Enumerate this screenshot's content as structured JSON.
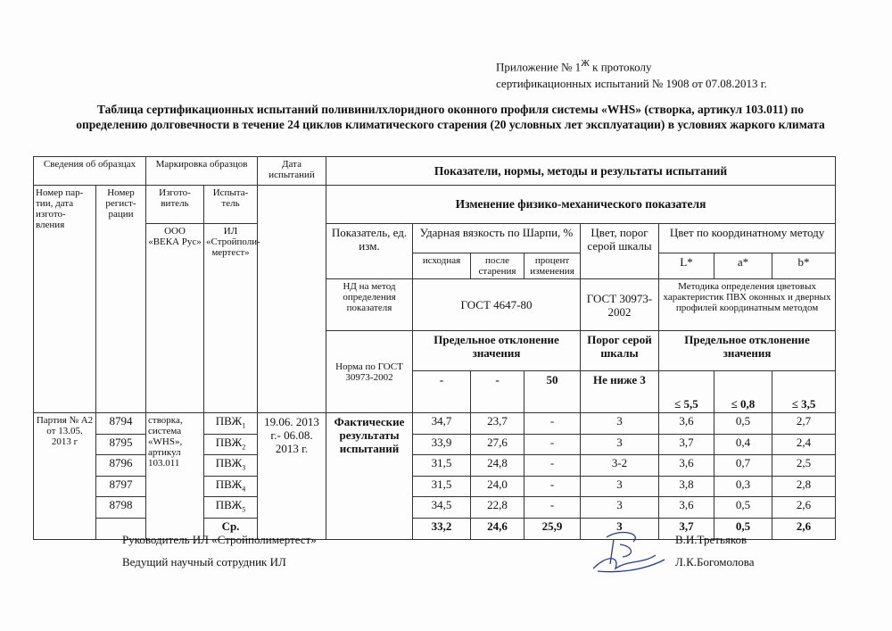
{
  "appendix": {
    "line1": "Приложение № 1",
    "sup": "Ж",
    "line1b": " к протоколу",
    "line2": "сертификационных испытаний № 1908 от 07.08.2013 г."
  },
  "title": "Таблица сертификационных испытаний поливинилхлоридного оконного профиля системы «WHS» (створка, артикул 103.011) по определению долговечности в течение 24 циклов климатического старения (20 условных лет эксплуатации) в условиях жаркого климата",
  "table": {
    "h_samples": "Сведения об образцах",
    "h_marking": "Маркировка образцов",
    "h_date": "Дата испытаний",
    "h_indicators": "Показатели, нормы, методы и результаты испытаний",
    "h_batch": "Номер пар-тии, дата изгото-вления",
    "h_reg": "Номер регист-рации",
    "h_maker": "Изгото-витель",
    "h_tester": "Испыта-тель",
    "h_change": "Изменение физико-механического показателя",
    "maker": "ООО «ВЕКА Рус»",
    "tester": "ИЛ «Стройполи-мертест»",
    "h_param": "Показатель, ед. изм.",
    "h_charpy": "Ударная вязкость по Шарпи, %",
    "h_grey": "Цвет, порог серой шкалы",
    "h_coord": "Цвет по координатному методу",
    "h_initial": "исходная",
    "h_after": "после старения",
    "h_percent": "процент изменения",
    "h_L": "L*",
    "h_a": "a*",
    "h_b": "b*",
    "h_nd": "НД на метод определения показателя",
    "nd_charpy": "ГОСТ 4647-80",
    "nd_grey": "ГОСТ 30973-2002",
    "nd_coord": "Методика определения цветовых характеристик ПВХ оконных и дверных профилей координатным методом",
    "h_norm": "Норма по ГОСТ 30973-2002",
    "norm_dev1": "Предельное отклонение значения",
    "norm_grey": "Порог серой шкалы",
    "norm_dev2": "Предельное отклонение значения",
    "norms": [
      "-",
      "-",
      "50",
      "Не ниже 3",
      "≤ 5,5",
      "≤ 0,8",
      "≤ 3,5"
    ],
    "batch": "Партия № А2 от 13.05. 2013 г",
    "sample_desc": "створка, система «WHS», артикул 103.011",
    "test_dates": "19.06. 2013 г.- 06.08. 2013 г.",
    "actual": "Фактические результаты испытаний",
    "rows": [
      {
        "reg": "8794",
        "code": "ПВЖ",
        "sub": "1",
        "v": [
          "34,7",
          "23,7",
          "-",
          "3",
          "3,6",
          "0,5",
          "2,7"
        ]
      },
      {
        "reg": "8795",
        "code": "ПВЖ",
        "sub": "2",
        "v": [
          "33,9",
          "27,6",
          "-",
          "3",
          "3,7",
          "0,4",
          "2,4"
        ]
      },
      {
        "reg": "8796",
        "code": "ПВЖ",
        "sub": "3",
        "v": [
          "31,5",
          "24,8",
          "-",
          "3-2",
          "3,6",
          "0,7",
          "2,5"
        ]
      },
      {
        "reg": "8797",
        "code": "ПВЖ",
        "sub": "4",
        "v": [
          "31,5",
          "24,0",
          "-",
          "3",
          "3,8",
          "0,3",
          "2,8"
        ]
      },
      {
        "reg": "8798",
        "code": "ПВЖ",
        "sub": "5",
        "v": [
          "34,5",
          "22,8",
          "-",
          "3",
          "3,6",
          "0,5",
          "2,6"
        ]
      }
    ],
    "avg": {
      "label": "Ср.",
      "v": [
        "33,2",
        "24,6",
        "25,9",
        "3",
        "3,7",
        "0,5",
        "2,6"
      ]
    }
  },
  "footer": {
    "head": "Руководитель ИЛ «Стройполимертест»",
    "lead": "Ведущий  научный сотрудник ИЛ",
    "name1": "В.И.Третьяков",
    "name2": "Л.К.Богомолова"
  }
}
